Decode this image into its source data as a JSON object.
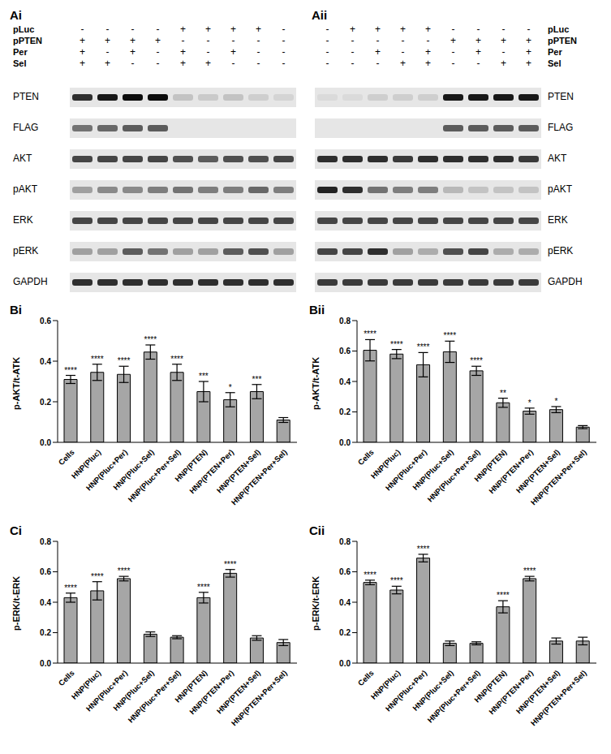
{
  "blots": [
    {
      "panel": "Ai",
      "conditions": [
        {
          "name": "pLuc",
          "signs": [
            "-",
            "-",
            "-",
            "-",
            "+",
            "+",
            "+",
            "+",
            "-"
          ]
        },
        {
          "name": "pPTEN",
          "signs": [
            "+",
            "+",
            "+",
            "+",
            "-",
            "-",
            "-",
            "-",
            "-"
          ]
        },
        {
          "name": "Per",
          "signs": [
            "+",
            "-",
            "+",
            "-",
            "+",
            "-",
            "+",
            "-",
            "-"
          ]
        },
        {
          "name": "Sel",
          "signs": [
            "+",
            "+",
            "-",
            "-",
            "+",
            "+",
            "-",
            "-",
            "-"
          ]
        }
      ],
      "rows": [
        {
          "name": "PTEN",
          "intensity": [
            0.8,
            0.9,
            0.95,
            0.95,
            0.15,
            0.12,
            0.15,
            0.1,
            0.08
          ]
        },
        {
          "name": "FLAG",
          "intensity": [
            0.5,
            0.55,
            0.6,
            0.6,
            0,
            0,
            0,
            0,
            0
          ]
        },
        {
          "name": "AKT",
          "intensity": [
            0.7,
            0.7,
            0.7,
            0.7,
            0.65,
            0.6,
            0.65,
            0.65,
            0.7
          ]
        },
        {
          "name": "pAKT",
          "intensity": [
            0.3,
            0.4,
            0.4,
            0.45,
            0.5,
            0.45,
            0.45,
            0.55,
            0.45
          ]
        },
        {
          "name": "ERK",
          "intensity": [
            0.7,
            0.7,
            0.7,
            0.7,
            0.7,
            0.7,
            0.7,
            0.7,
            0.7
          ]
        },
        {
          "name": "pERK",
          "intensity": [
            0.3,
            0.3,
            0.6,
            0.5,
            0.3,
            0.3,
            0.6,
            0.65,
            0.3
          ]
        },
        {
          "name": "GAPDH",
          "intensity": [
            0.8,
            0.8,
            0.8,
            0.8,
            0.8,
            0.8,
            0.8,
            0.8,
            0.8
          ]
        }
      ]
    },
    {
      "panel": "Aii",
      "conditions": [
        {
          "name": "pLuc",
          "signs": [
            "-",
            "+",
            "+",
            "+",
            "+",
            "-",
            "-",
            "-",
            "-"
          ]
        },
        {
          "name": "pPTEN",
          "signs": [
            "-",
            "-",
            "-",
            "-",
            "-",
            "+",
            "+",
            "+",
            "+"
          ]
        },
        {
          "name": "Per",
          "signs": [
            "-",
            "-",
            "+",
            "-",
            "+",
            "-",
            "+",
            "-",
            "+"
          ]
        },
        {
          "name": "Sel",
          "signs": [
            "-",
            "-",
            "-",
            "+",
            "+",
            "-",
            "-",
            "+",
            "+"
          ]
        }
      ],
      "rows": [
        {
          "name": "PTEN",
          "intensity": [
            0.05,
            0.05,
            0.1,
            0.1,
            0.1,
            0.9,
            0.9,
            0.9,
            0.9
          ]
        },
        {
          "name": "FLAG",
          "intensity": [
            0,
            0,
            0,
            0,
            0,
            0.6,
            0.6,
            0.6,
            0.6
          ]
        },
        {
          "name": "AKT",
          "intensity": [
            0.8,
            0.8,
            0.8,
            0.75,
            0.8,
            0.8,
            0.8,
            0.8,
            0.75
          ]
        },
        {
          "name": "pAKT",
          "intensity": [
            0.85,
            0.8,
            0.5,
            0.45,
            0.45,
            0.2,
            0.15,
            0.15,
            0.15
          ]
        },
        {
          "name": "ERK",
          "intensity": [
            0.7,
            0.7,
            0.7,
            0.7,
            0.7,
            0.7,
            0.7,
            0.7,
            0.7
          ]
        },
        {
          "name": "pERK",
          "intensity": [
            0.7,
            0.7,
            0.8,
            0.3,
            0.25,
            0.65,
            0.7,
            0.25,
            0.25
          ]
        },
        {
          "name": "GAPDH",
          "intensity": [
            0.75,
            0.75,
            0.75,
            0.75,
            0.75,
            0.75,
            0.75,
            0.75,
            0.75
          ]
        }
      ]
    }
  ],
  "chart_data": [
    {
      "panel": "Bi",
      "type": "bar",
      "y_label": "p-AKT/t-ATK",
      "categories": [
        "Cells",
        "HNP(Pluc)",
        "HNP(Pluc+Per)",
        "HNP(Pluc+Sel)",
        "HNP(Pluc+Per+Sel)",
        "HNP(PTEN)",
        "HNP(PTEN+Per)",
        "HNP(PTEN+Sel)",
        "HNP(PTEN+Per+Sel)"
      ],
      "values": [
        0.31,
        0.345,
        0.335,
        0.445,
        0.345,
        0.25,
        0.21,
        0.25,
        0.11
      ],
      "error": [
        0.02,
        0.04,
        0.04,
        0.035,
        0.04,
        0.05,
        0.035,
        0.035,
        0.012
      ],
      "significance": [
        "****",
        "****",
        "****",
        "****",
        "****",
        "***",
        "*",
        "***",
        null
      ],
      "color": "#a6a6a6",
      "ylim": [
        0,
        0.6
      ],
      "yticks": [
        {
          "value": 0,
          "label": "0.0"
        },
        0.2,
        0.4,
        0.6
      ]
    },
    {
      "panel": "Bii",
      "type": "bar",
      "y_label": "p-AKT/t-ATK",
      "categories": [
        "Cells",
        "HNP(Pluc)",
        "HNP(Pluc+Per)",
        "HNP(Pluc+Sel)",
        "HNP(Pluc+Per+Sel)",
        "HNP(PTEN)",
        "HNP(PTEN+Per)",
        "HNP(PTEN+Sel)",
        "HNP(PTEN+Per+Sel)"
      ],
      "values": [
        0.605,
        0.58,
        0.51,
        0.595,
        0.47,
        0.26,
        0.205,
        0.215,
        0.1
      ],
      "error": [
        0.07,
        0.03,
        0.08,
        0.07,
        0.03,
        0.03,
        0.02,
        0.02,
        0.01
      ],
      "significance": [
        "****",
        "****",
        "****",
        "****",
        "****",
        "**",
        "*",
        "*",
        null
      ],
      "color": "#a6a6a6",
      "ylim": [
        0,
        0.8
      ],
      "yticks": [
        {
          "value": 0,
          "label": "0.0"
        },
        0.2,
        0.4,
        0.6,
        0.8
      ]
    },
    {
      "panel": "Ci",
      "type": "bar",
      "y_label": "p-ERK/t-ERK",
      "categories": [
        "Cells",
        "HNP(Pluc)",
        "HNP(Pluc+Per)",
        "HNP(Pluc+Sel)",
        "HNP(Pluc+Per+Sel)",
        "HNP(PTEN)",
        "HNP(PTEN+Per)",
        "HNP(PTEN+Sel)",
        "HNP(PTEN+Per+Sel)"
      ],
      "values": [
        0.43,
        0.475,
        0.555,
        0.19,
        0.17,
        0.43,
        0.59,
        0.165,
        0.135
      ],
      "error": [
        0.03,
        0.06,
        0.015,
        0.015,
        0.01,
        0.035,
        0.025,
        0.015,
        0.02
      ],
      "significance": [
        "****",
        "****",
        "****",
        null,
        null,
        "****",
        "****",
        null,
        null
      ],
      "color": "#a6a6a6",
      "ylim": [
        0,
        0.8
      ],
      "yticks": [
        {
          "value": 0,
          "label": "0.0"
        },
        0.2,
        0.4,
        0.6,
        0.8
      ]
    },
    {
      "panel": "Cii",
      "type": "bar",
      "y_label": "p-ERK/t-ERK",
      "categories": [
        "Cells",
        "HNP(Pluc)",
        "HNP(Pluc+Per)",
        "HNP(Pluc+Sel)",
        "HNP(Pluc+Per+Sel)",
        "HNP(PTEN)",
        "HNP(PTEN+Per)",
        "HNP(PTEN+Sel)",
        "HNP(PTEN+Per+Sel)"
      ],
      "values": [
        0.53,
        0.48,
        0.69,
        0.13,
        0.13,
        0.37,
        0.555,
        0.145,
        0.145
      ],
      "error": [
        0.015,
        0.025,
        0.025,
        0.015,
        0.01,
        0.04,
        0.015,
        0.02,
        0.025
      ],
      "significance": [
        "****",
        "****",
        "****",
        null,
        null,
        "****",
        "****",
        null,
        null
      ],
      "color": "#a6a6a6",
      "ylim": [
        0,
        0.8
      ],
      "yticks": [
        {
          "value": 0,
          "label": "0.0"
        },
        0.2,
        0.4,
        0.6,
        0.8
      ]
    }
  ]
}
